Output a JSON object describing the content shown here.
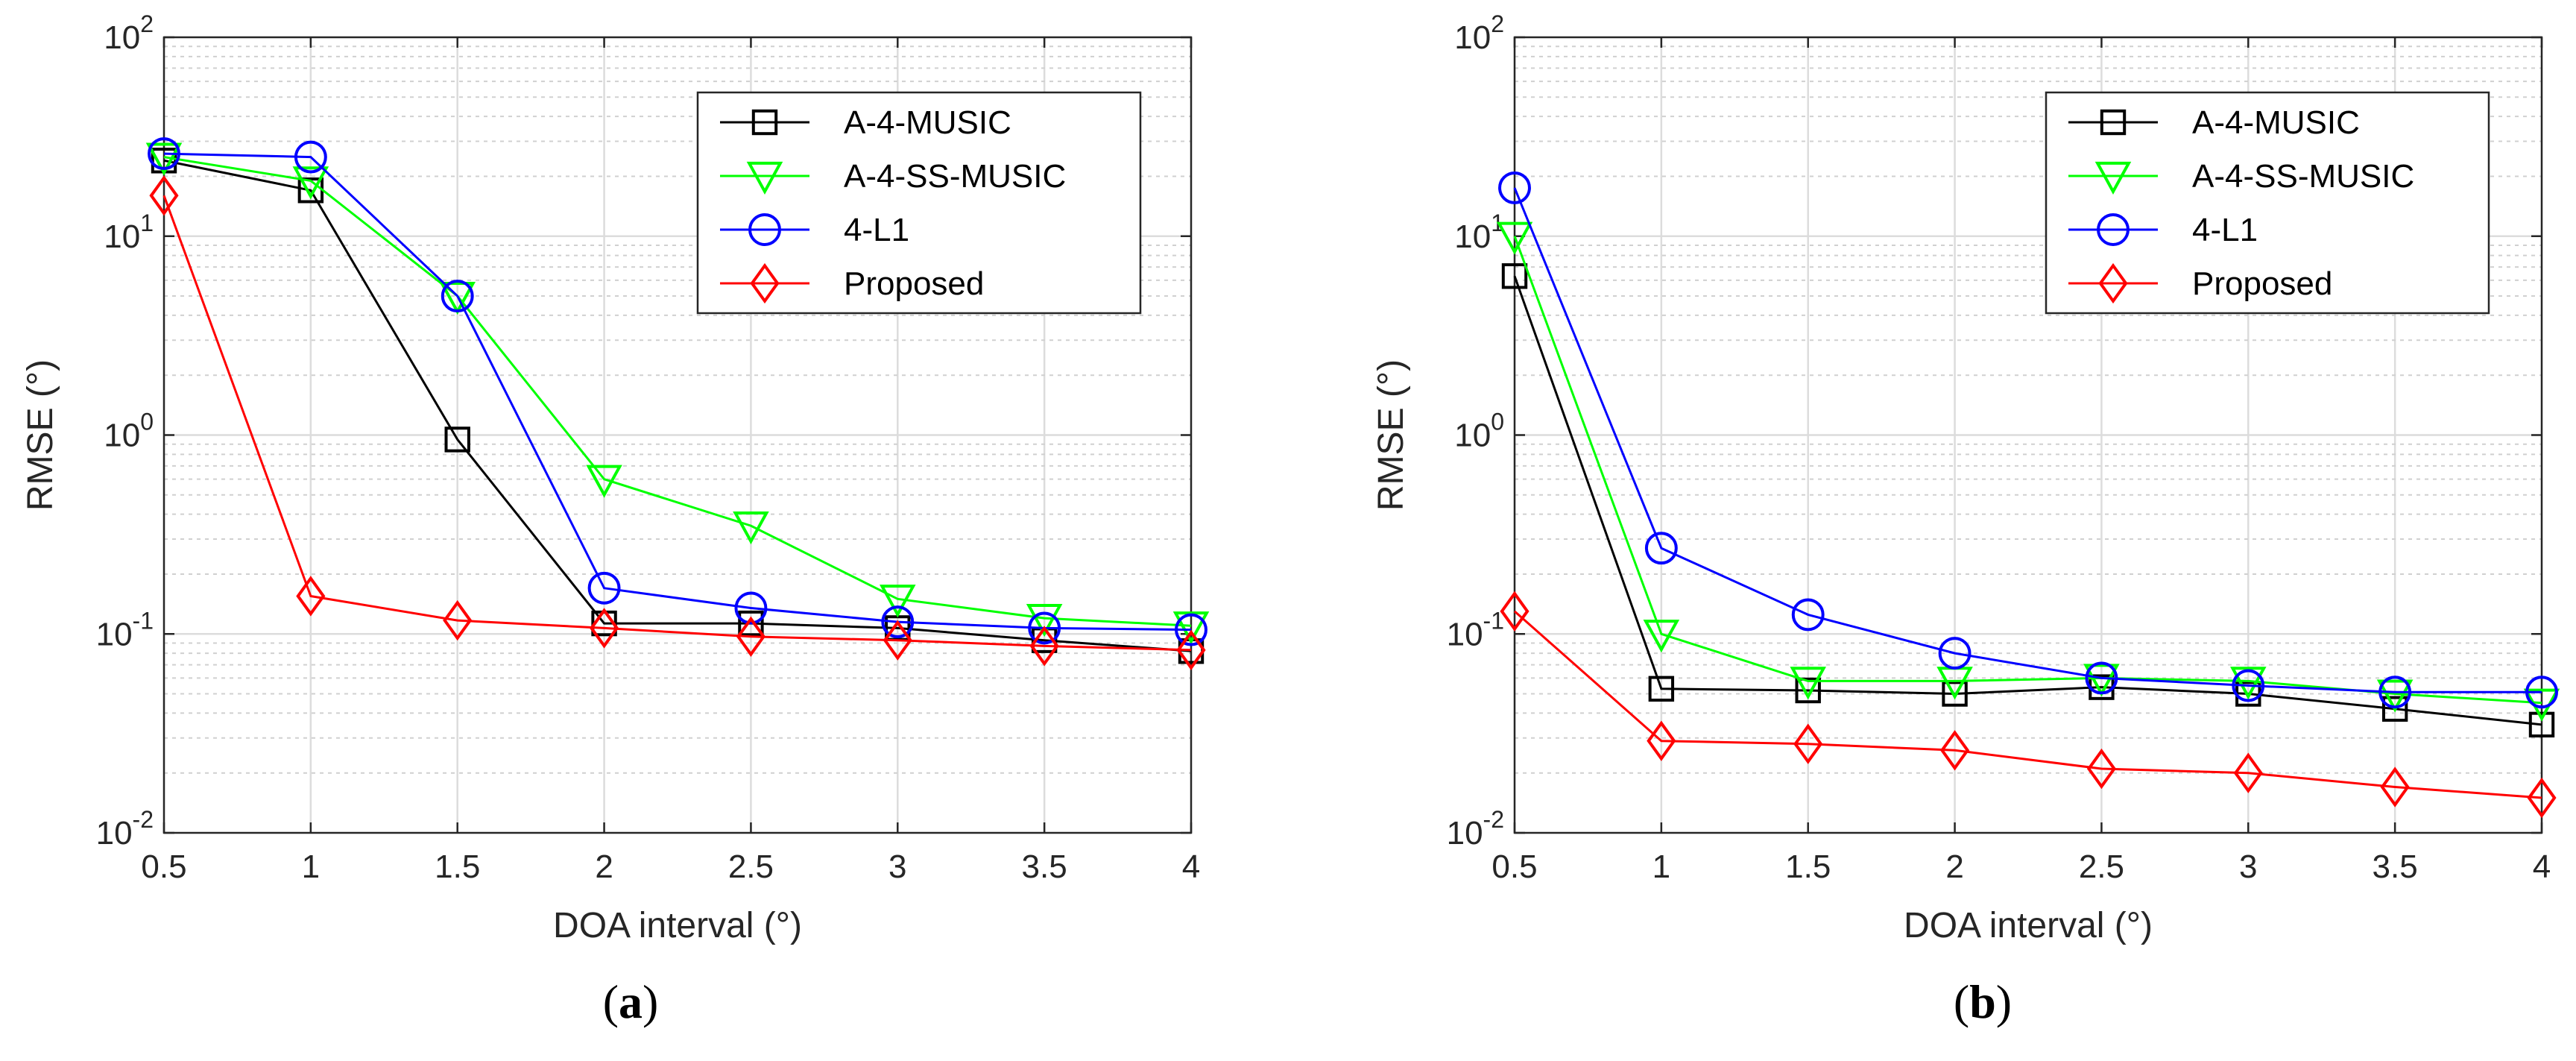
{
  "chart_data": [
    {
      "type": "line",
      "panel_label_open": "(",
      "panel_label_letter": "a",
      "panel_label_close": ")",
      "xlabel": "DOA interval (°)",
      "ylabel": "RMSE (°)",
      "x": [
        0.5,
        1,
        1.5,
        2,
        2.5,
        3,
        3.5,
        4
      ],
      "x_ticks": [
        "0.5",
        "1",
        "1.5",
        "2",
        "2.5",
        "3",
        "3.5",
        "4"
      ],
      "xlim": [
        0.5,
        4
      ],
      "yscale": "log",
      "ylim": [
        0.01,
        100
      ],
      "y_ticks": [
        {
          "base": "10",
          "exp": "-2",
          "value": 0.01
        },
        {
          "base": "10",
          "exp": "-1",
          "value": 0.1
        },
        {
          "base": "10",
          "exp": "0",
          "value": 1
        },
        {
          "base": "10",
          "exp": "1",
          "value": 10
        },
        {
          "base": "10",
          "exp": "2",
          "value": 100
        }
      ],
      "grid": true,
      "legend_position": "top-right",
      "series": [
        {
          "name": "A-4-MUSIC",
          "color": "#000000",
          "marker": "square",
          "values": [
            24,
            17,
            0.95,
            0.113,
            0.113,
            0.107,
            0.093,
            0.082
          ]
        },
        {
          "name": "A-4-SS-MUSIC",
          "color": "#00ff00",
          "marker": "triangle-down",
          "values": [
            25,
            19,
            5.0,
            0.6,
            0.35,
            0.15,
            0.12,
            0.11
          ]
        },
        {
          "name": "4-L1",
          "color": "#0000ff",
          "marker": "circle",
          "values": [
            26,
            25,
            5.0,
            0.17,
            0.135,
            0.115,
            0.107,
            0.105
          ]
        },
        {
          "name": "Proposed",
          "color": "#ff0000",
          "marker": "diamond",
          "values": [
            16,
            0.155,
            0.117,
            0.107,
            0.097,
            0.093,
            0.087,
            0.083
          ]
        }
      ]
    },
    {
      "type": "line",
      "panel_label_open": "(",
      "panel_label_letter": "b",
      "panel_label_close": ")",
      "xlabel": "DOA interval (°)",
      "ylabel": "RMSE (°)",
      "x": [
        0.5,
        1,
        1.5,
        2,
        2.5,
        3,
        3.5,
        4
      ],
      "x_ticks": [
        "0.5",
        "1",
        "1.5",
        "2",
        "2.5",
        "3",
        "3.5",
        "4"
      ],
      "xlim": [
        0.5,
        4
      ],
      "yscale": "log",
      "ylim": [
        0.01,
        100
      ],
      "y_ticks": [
        {
          "base": "10",
          "exp": "-2",
          "value": 0.01
        },
        {
          "base": "10",
          "exp": "-1",
          "value": 0.1
        },
        {
          "base": "10",
          "exp": "0",
          "value": 1
        },
        {
          "base": "10",
          "exp": "1",
          "value": 10
        },
        {
          "base": "10",
          "exp": "2",
          "value": 100
        }
      ],
      "grid": true,
      "legend_position": "top-right",
      "series": [
        {
          "name": "A-4-MUSIC",
          "color": "#000000",
          "marker": "square",
          "values": [
            6.3,
            0.053,
            0.052,
            0.05,
            0.054,
            0.05,
            0.042,
            0.035
          ]
        },
        {
          "name": "A-4-SS-MUSIC",
          "color": "#00ff00",
          "marker": "triangle-down",
          "values": [
            10,
            0.1,
            0.058,
            0.058,
            0.06,
            0.058,
            0.05,
            0.045
          ]
        },
        {
          "name": "4-L1",
          "color": "#0000ff",
          "marker": "circle",
          "values": [
            17.5,
            0.27,
            0.125,
            0.08,
            0.06,
            0.055,
            0.051,
            0.051
          ]
        },
        {
          "name": "Proposed",
          "color": "#ff0000",
          "marker": "diamond",
          "values": [
            0.13,
            0.029,
            0.028,
            0.026,
            0.021,
            0.02,
            0.017,
            0.015
          ]
        }
      ]
    }
  ]
}
